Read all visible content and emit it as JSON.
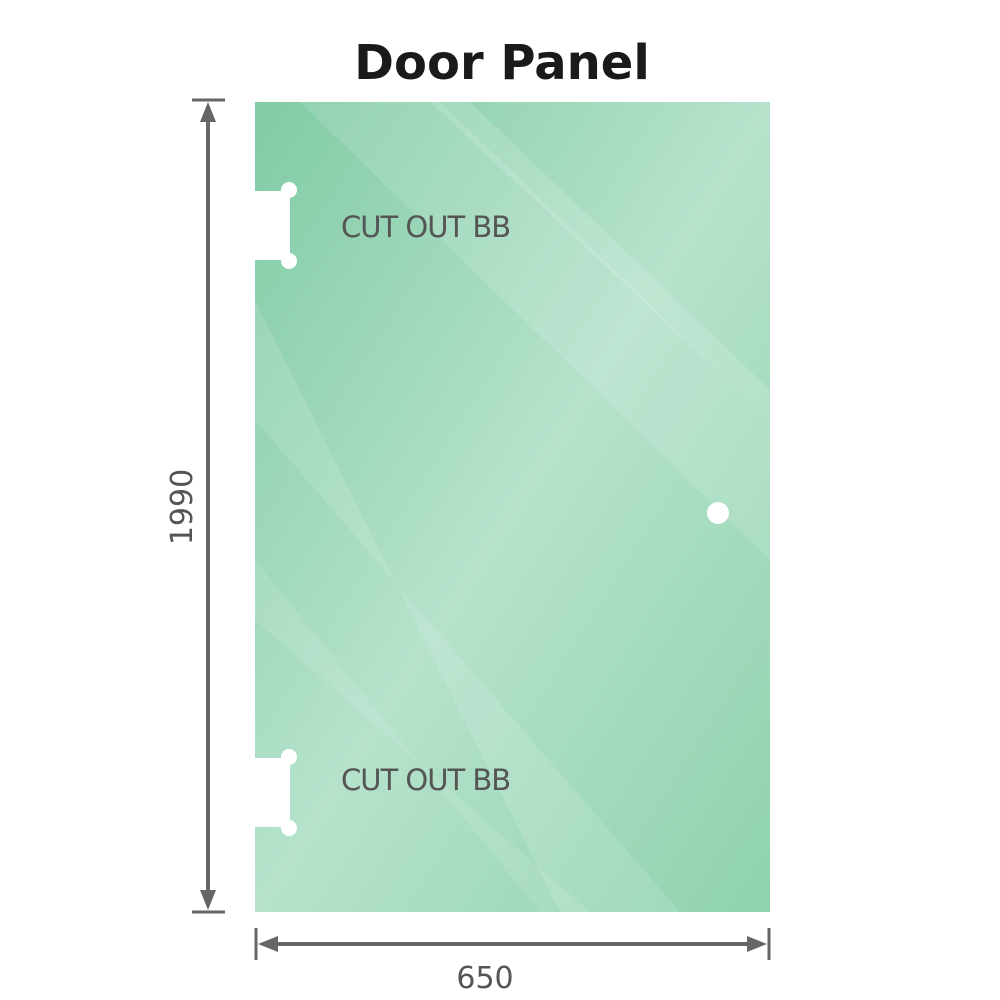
{
  "title": "Door Panel",
  "panel": {
    "color": "#8dd4b0",
    "cutout_labels": [
      "CUT OUT BB",
      "CUT OUT BB"
    ]
  },
  "dimensions": {
    "height": "1990",
    "width": "650"
  }
}
